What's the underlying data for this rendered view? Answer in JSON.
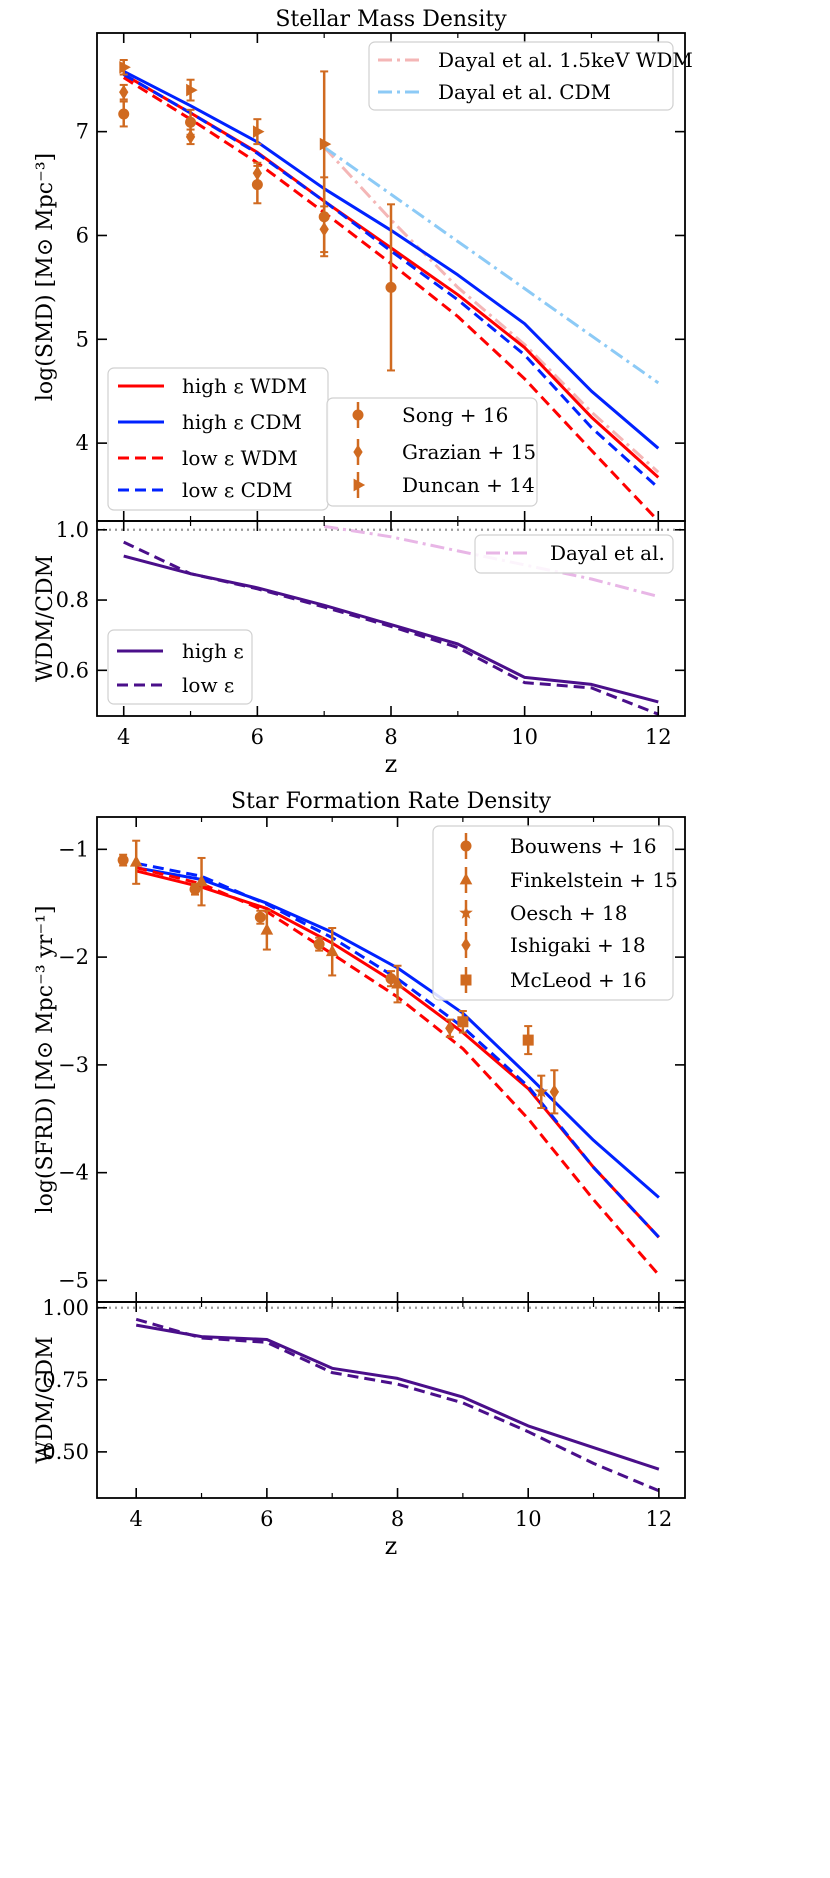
{
  "colors": {
    "high_wdm": "#ff0000",
    "high_cdm": "#0022ff",
    "dayal_wdm": "#f4b6b6",
    "dayal_cdm": "#8ccaf6",
    "ratio": "#4a0f8a",
    "dayal_ratio": "#e8b6e6",
    "obs": "#d06a20",
    "unity": "#999999"
  },
  "chart_data": [
    {
      "type": "line",
      "title": "Stellar Mass Density",
      "xlabel": "",
      "ylabel": "log(SMD) [M⊙ Mpc⁻³]",
      "xlim": [
        3.6,
        12.4
      ],
      "ylim": [
        3.25,
        7.95
      ],
      "xticks": [
        4,
        6,
        8,
        10,
        12
      ],
      "xticklabels": [
        "",
        "",
        "",
        "",
        ""
      ],
      "yticks": [
        4,
        5,
        6,
        7
      ],
      "yticklabels": [
        "4",
        "5",
        "6",
        "7"
      ],
      "model_legend": [
        {
          "label": "high ε WDM",
          "color": "#ff0000",
          "dash": "solid"
        },
        {
          "label": "high ε CDM",
          "color": "#0022ff",
          "dash": "solid"
        },
        {
          "label": "low ε WDM",
          "color": "#ff0000",
          "dash": "dashed"
        },
        {
          "label": "low ε CDM",
          "color": "#0022ff",
          "dash": "dashed"
        }
      ],
      "ref_legend": [
        {
          "label": "Dayal et al. 1.5keV WDM",
          "color": "#f4b6b6",
          "dash": "dashdot"
        },
        {
          "label": "Dayal et al. CDM",
          "color": "#8ccaf6",
          "dash": "dashdot"
        }
      ],
      "obs_legend": [
        {
          "label": "Song + 16",
          "marker": "circle"
        },
        {
          "label": "Grazian + 15",
          "marker": "diamond"
        },
        {
          "label": "Duncan + 14",
          "marker": "tri-right"
        }
      ],
      "series": [
        {
          "name": "Dayal et al. 1.5keV WDM",
          "color": "#f4b6b6",
          "dash": "dashdot",
          "x": [
            7,
            8,
            9,
            10,
            11,
            12
          ],
          "y": [
            6.85,
            6.15,
            5.5,
            4.95,
            4.3,
            3.72
          ]
        },
        {
          "name": "Dayal et al. CDM",
          "color": "#8ccaf6",
          "dash": "dashdot",
          "x": [
            7,
            12
          ],
          "y": [
            6.85,
            4.58
          ]
        },
        {
          "name": "high ε WDM",
          "color": "#ff0000",
          "dash": "solid",
          "x": [
            4,
            5,
            6,
            7,
            8,
            9,
            10,
            11,
            12
          ],
          "y": [
            7.55,
            7.18,
            6.8,
            6.33,
            5.88,
            5.43,
            4.92,
            4.25,
            3.67
          ]
        },
        {
          "name": "high ε CDM",
          "color": "#0022ff",
          "dash": "solid",
          "x": [
            4,
            5,
            6,
            7,
            8,
            9,
            10,
            11,
            12
          ],
          "y": [
            7.58,
            7.25,
            6.9,
            6.45,
            6.05,
            5.62,
            5.15,
            4.5,
            3.95
          ]
        },
        {
          "name": "low ε WDM",
          "color": "#ff0000",
          "dash": "dashed",
          "x": [
            4,
            5,
            6,
            7,
            8,
            9,
            10,
            11,
            12
          ],
          "y": [
            7.52,
            7.12,
            6.7,
            6.22,
            5.73,
            5.22,
            4.62,
            3.93,
            3.25
          ]
        },
        {
          "name": "low ε CDM",
          "color": "#0022ff",
          "dash": "dashed",
          "x": [
            4,
            5,
            6,
            7,
            8,
            9,
            10,
            11,
            12
          ],
          "y": [
            7.55,
            7.18,
            6.79,
            6.33,
            5.85,
            5.38,
            4.85,
            4.15,
            3.57
          ]
        }
      ],
      "observations": [
        {
          "name": "Song + 16",
          "marker": "circle",
          "x": [
            4,
            5,
            6,
            7,
            8
          ],
          "y": [
            7.17,
            7.09,
            6.49,
            6.18,
            5.5
          ],
          "err": [
            0.12,
            0.12,
            0.18,
            0.38,
            0.8
          ]
        },
        {
          "name": "Grazian + 15",
          "marker": "diamond",
          "x": [
            4,
            5,
            6,
            7
          ],
          "y": [
            7.38,
            6.95,
            6.6,
            6.06
          ],
          "err": [
            0.07,
            0.07,
            0.1,
            0.22
          ]
        },
        {
          "name": "Duncan + 14",
          "marker": "tri-right",
          "x": [
            4,
            5,
            6,
            7
          ],
          "y": [
            7.62,
            7.4,
            7.0,
            6.88
          ],
          "err": [
            0.07,
            0.1,
            0.12,
            0.7
          ]
        }
      ]
    },
    {
      "type": "line",
      "title": "",
      "xlabel": "z",
      "ylabel": "WDM/CDM",
      "xlim": [
        3.6,
        12.4
      ],
      "ylim": [
        0.47,
        1.025
      ],
      "xticks": [
        4,
        6,
        8,
        10,
        12
      ],
      "xticklabels": [
        "4",
        "6",
        "8",
        "10",
        "12"
      ],
      "yticks": [
        0.6,
        0.8,
        1.0
      ],
      "yticklabels": [
        "0.6",
        "0.8",
        "1.0"
      ],
      "reference_line": 1.0,
      "model_legend": [
        {
          "label": "high ε",
          "color": "#4a0f8a",
          "dash": "solid"
        },
        {
          "label": "low ε",
          "color": "#4a0f8a",
          "dash": "dashed"
        }
      ],
      "ref_legend": [
        {
          "label": "Dayal et al.",
          "color": "#e8b6e6",
          "dash": "dashdot"
        }
      ],
      "series": [
        {
          "name": "Dayal et al.",
          "color": "#e8b6e6",
          "dash": "dashdot",
          "x": [
            7,
            8,
            9,
            10,
            11,
            12
          ],
          "y": [
            1.01,
            0.98,
            0.94,
            0.9,
            0.86,
            0.81
          ]
        },
        {
          "name": "high ε",
          "color": "#4a0f8a",
          "dash": "solid",
          "x": [
            4,
            5,
            6,
            7,
            8,
            9,
            10,
            11,
            12
          ],
          "y": [
            0.925,
            0.875,
            0.835,
            0.785,
            0.73,
            0.675,
            0.58,
            0.56,
            0.51
          ]
        },
        {
          "name": "low ε",
          "color": "#4a0f8a",
          "dash": "dashed",
          "x": [
            4,
            5,
            6,
            7,
            8,
            9,
            10,
            11,
            12
          ],
          "y": [
            0.965,
            0.875,
            0.832,
            0.78,
            0.725,
            0.665,
            0.565,
            0.55,
            0.475
          ]
        }
      ]
    },
    {
      "type": "line",
      "title": "Star Formation Rate Density",
      "xlabel": "",
      "ylabel": "log(SFRD) [M⊙ Mpc⁻³ yr⁻¹]",
      "xlim": [
        3.4,
        12.4
      ],
      "ylim": [
        -5.2,
        -0.7
      ],
      "xticks": [
        4,
        6,
        8,
        10,
        12
      ],
      "xticklabels": [
        "",
        "",
        "",
        "",
        ""
      ],
      "yticks": [
        -5,
        -4,
        -3,
        -2,
        -1
      ],
      "yticklabels": [
        "−5",
        "−4",
        "−3",
        "−2",
        "−1"
      ],
      "model_legend": [],
      "ref_legend": [],
      "obs_legend": [
        {
          "label": "Bouwens + 16",
          "marker": "circle"
        },
        {
          "label": "Finkelstein + 15",
          "marker": "triangle"
        },
        {
          "label": "Oesch + 18",
          "marker": "star"
        },
        {
          "label": "Ishigaki + 18",
          "marker": "diamond"
        },
        {
          "label": "McLeod + 16",
          "marker": "square"
        }
      ],
      "series": [
        {
          "name": "high ε WDM",
          "color": "#ff0000",
          "dash": "solid",
          "x": [
            4,
            5,
            6,
            7,
            8,
            9,
            10,
            11,
            12
          ],
          "y": [
            -1.2,
            -1.35,
            -1.55,
            -1.87,
            -2.25,
            -2.7,
            -3.22,
            -3.95,
            -4.6
          ]
        },
        {
          "name": "high ε CDM",
          "color": "#0022ff",
          "dash": "solid",
          "x": [
            4,
            5,
            6,
            7,
            8,
            9,
            10,
            11,
            12
          ],
          "y": [
            -1.17,
            -1.28,
            -1.5,
            -1.77,
            -2.1,
            -2.52,
            -3.1,
            -3.7,
            -4.23
          ]
        },
        {
          "name": "low ε WDM",
          "color": "#ff0000",
          "dash": "dashed",
          "x": [
            4,
            5,
            6,
            7,
            8,
            9,
            10,
            11,
            12
          ],
          "y": [
            -1.17,
            -1.32,
            -1.58,
            -1.97,
            -2.37,
            -2.85,
            -3.5,
            -4.25,
            -4.95
          ]
        },
        {
          "name": "low ε CDM",
          "color": "#0022ff",
          "dash": "dashed",
          "x": [
            4,
            5,
            6,
            7,
            8,
            9,
            10,
            11,
            12
          ],
          "y": [
            -1.13,
            -1.25,
            -1.51,
            -1.82,
            -2.2,
            -2.65,
            -3.2,
            -3.95,
            -4.6
          ]
        }
      ],
      "observations": [
        {
          "name": "Bouwens + 16",
          "marker": "circle",
          "x": [
            3.8,
            4.9,
            5.9,
            6.8,
            7.9
          ],
          "y": [
            -1.1,
            -1.37,
            -1.63,
            -1.88,
            -2.2
          ],
          "err": [
            0.05,
            0.05,
            0.06,
            0.06,
            0.07
          ]
        },
        {
          "name": "Finkelstein + 15",
          "marker": "triangle",
          "x": [
            4.0,
            5.0,
            6.0,
            7.0,
            8.0
          ],
          "y": [
            -1.12,
            -1.3,
            -1.75,
            -1.95,
            -2.25
          ],
          "err": [
            0.2,
            0.22,
            0.18,
            0.22,
            0.17
          ]
        },
        {
          "name": "Oesch + 18",
          "marker": "star",
          "x": [
            10.2
          ],
          "y": [
            -3.25
          ],
          "err": [
            0.15
          ]
        },
        {
          "name": "Ishigaki + 18",
          "marker": "diamond",
          "x": [
            8.8,
            10.4
          ],
          "y": [
            -2.66,
            -3.25
          ],
          "err": [
            0.08,
            0.2
          ]
        },
        {
          "name": "McLeod + 16",
          "marker": "square",
          "x": [
            9.0,
            10.0
          ],
          "y": [
            -2.6,
            -2.77
          ],
          "err": [
            0.1,
            0.13
          ]
        }
      ]
    },
    {
      "type": "line",
      "title": "",
      "xlabel": "z",
      "ylabel": "WDM/CDM",
      "xlim": [
        3.4,
        12.4
      ],
      "ylim": [
        0.34,
        1.02
      ],
      "xticks": [
        4,
        6,
        8,
        10,
        12
      ],
      "xticklabels": [
        "4",
        "6",
        "8",
        "10",
        "12"
      ],
      "yticks": [
        0.5,
        0.75,
        1.0
      ],
      "yticklabels": [
        "0.50",
        "0.75",
        "1.00"
      ],
      "reference_line": 1.0,
      "model_legend": [],
      "ref_legend": [],
      "series": [
        {
          "name": "high ε",
          "color": "#4a0f8a",
          "dash": "solid",
          "x": [
            4,
            5,
            6,
            7,
            8,
            9,
            10,
            11,
            12
          ],
          "y": [
            0.94,
            0.9,
            0.89,
            0.79,
            0.755,
            0.69,
            0.59,
            0.515,
            0.44
          ]
        },
        {
          "name": "low ε",
          "color": "#4a0f8a",
          "dash": "dashed",
          "x": [
            4,
            5,
            6,
            7,
            8,
            9,
            10,
            11,
            12
          ],
          "y": [
            0.96,
            0.895,
            0.88,
            0.775,
            0.735,
            0.67,
            0.57,
            0.46,
            0.365
          ]
        }
      ]
    }
  ]
}
